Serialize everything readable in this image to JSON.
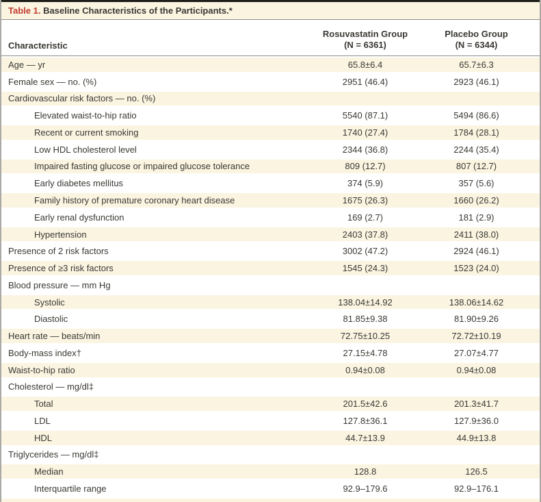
{
  "colors": {
    "cream": "#faf4e1",
    "title-red": "#c13b30",
    "text": "#3a3833",
    "border-dark": "#1f1d1a",
    "divider": "#8e8d89",
    "frame": "#aaa9a5"
  },
  "table": {
    "title_prefix": "Table 1.",
    "title_rest": " Baseline Characteristics of the Participants.*",
    "columns": {
      "characteristic": "Characteristic",
      "group1_line1": "Rosuvastatin Group",
      "group1_line2": "(N = 6361)",
      "group2_line1": "Placebo Group",
      "group2_line2": "(N = 6344)"
    },
    "rows": [
      {
        "label": "Age — yr",
        "indent": 0,
        "v1": "65.8±6.4",
        "v2": "65.7±6.3"
      },
      {
        "label": "Female sex — no. (%)",
        "indent": 0,
        "v1": "2951 (46.4)",
        "v2": "2923 (46.1)"
      },
      {
        "label": "Cardiovascular risk factors — no. (%)",
        "indent": 0,
        "v1": "",
        "v2": ""
      },
      {
        "label": "Elevated waist-to-hip ratio",
        "indent": 1,
        "v1": "5540 (87.1)",
        "v2": "5494 (86.6)"
      },
      {
        "label": "Recent or current smoking",
        "indent": 1,
        "v1": "1740 (27.4)",
        "v2": "1784 (28.1)"
      },
      {
        "label": "Low HDL cholesterol level",
        "indent": 1,
        "v1": "2344 (36.8)",
        "v2": "2244 (35.4)"
      },
      {
        "label": "Impaired fasting glucose or impaired glucose tolerance",
        "indent": 1,
        "v1": "809 (12.7)",
        "v2": "807 (12.7)"
      },
      {
        "label": "Early diabetes mellitus",
        "indent": 1,
        "v1": "374 (5.9)",
        "v2": "357 (5.6)"
      },
      {
        "label": "Family history of premature coronary heart disease",
        "indent": 1,
        "v1": "1675 (26.3)",
        "v2": "1660 (26.2)"
      },
      {
        "label": "Early renal dysfunction",
        "indent": 1,
        "v1": "169 (2.7)",
        "v2": "181 (2.9)"
      },
      {
        "label": "Hypertension",
        "indent": 1,
        "v1": "2403 (37.8)",
        "v2": "2411 (38.0)"
      },
      {
        "label": "Presence of 2 risk factors",
        "indent": 0,
        "v1": "3002 (47.2)",
        "v2": "2924 (46.1)"
      },
      {
        "label": "Presence of ≥3 risk factors",
        "indent": 0,
        "v1": "1545 (24.3)",
        "v2": "1523 (24.0)"
      },
      {
        "label": "Blood pressure — mm Hg",
        "indent": 0,
        "v1": "",
        "v2": ""
      },
      {
        "label": "Systolic",
        "indent": 1,
        "v1": "138.04±14.92",
        "v2": "138.06±14.62"
      },
      {
        "label": "Diastolic",
        "indent": 1,
        "v1": "81.85±9.38",
        "v2": "81.90±9.26"
      },
      {
        "label": "Heart rate — beats/min",
        "indent": 0,
        "v1": "72.75±10.25",
        "v2": "72.72±10.19"
      },
      {
        "label": "Body-mass index†",
        "indent": 0,
        "v1": "27.15±4.78",
        "v2": "27.07±4.77"
      },
      {
        "label": "Waist-to-hip ratio",
        "indent": 0,
        "v1": "0.94±0.08",
        "v2": "0.94±0.08"
      },
      {
        "label": "Cholesterol — mg/dl‡",
        "indent": 0,
        "v1": "",
        "v2": ""
      },
      {
        "label": "Total",
        "indent": 1,
        "v1": "201.5±42.6",
        "v2": "201.3±41.7"
      },
      {
        "label": "LDL",
        "indent": 1,
        "v1": "127.8±36.1",
        "v2": "127.9±36.0"
      },
      {
        "label": "HDL",
        "indent": 1,
        "v1": "44.7±13.9",
        "v2": "44.9±13.8"
      },
      {
        "label": "Triglycerides — mg/dl‡",
        "indent": 0,
        "v1": "",
        "v2": ""
      },
      {
        "label": "Median",
        "indent": 1,
        "v1": "128.8",
        "v2": "126.5"
      },
      {
        "label": "Interquartile range",
        "indent": 1,
        "v1": "92.9–179.6",
        "v2": "92.9–176.1"
      }
    ]
  }
}
